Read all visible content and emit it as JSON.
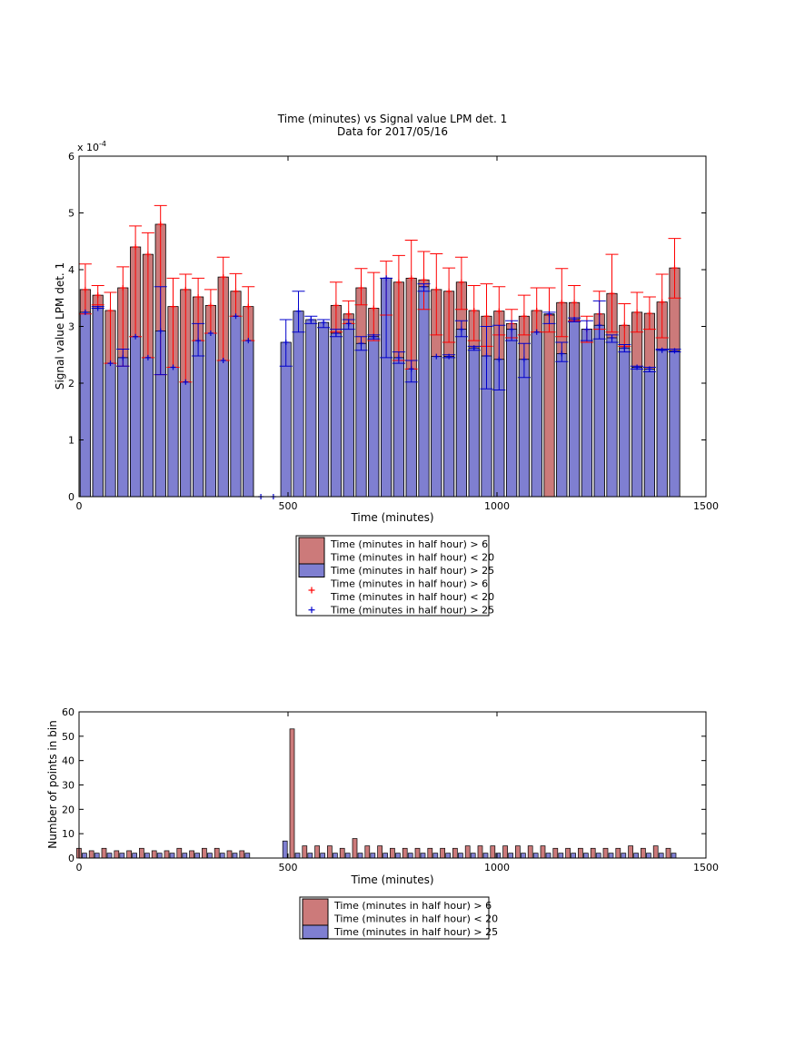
{
  "chart_data": [
    {
      "type": "bar",
      "title": "Time (minutes) vs Signal value LPM det. 1",
      "subtitle": "Data for 2017/05/16",
      "xlabel": "Time (minutes)",
      "ylabel": "Signal value LPM det. 1",
      "exponent_label": "x 10",
      "exponent_power": "-4",
      "xlim": [
        0,
        1500
      ],
      "ylim": [
        0,
        6
      ],
      "y_scale_factor": 0.0001,
      "xticks": [
        0,
        500,
        1000,
        1500
      ],
      "yticks": [
        0,
        1,
        2,
        3,
        4,
        5,
        6
      ],
      "grid": false,
      "legend_position": "below",
      "legend": [
        {
          "kind": "bar",
          "color": "#cc7a7a",
          "lines": [
            "Time (minutes in half hour) > 6",
            "Time (minutes in half hour) < 20"
          ]
        },
        {
          "kind": "bar",
          "color": "#7f7fd1",
          "lines": [
            "Time (minutes in half hour) > 25"
          ]
        },
        {
          "kind": "marker",
          "color": "#ff0000",
          "lines": [
            "Time (minutes in half hour) > 6",
            "Time (minutes in half hour) < 20"
          ]
        },
        {
          "kind": "marker",
          "color": "#0000cc",
          "lines": [
            "Time (minutes in half hour) > 25"
          ]
        }
      ],
      "colors": {
        "series_a": "#cc7a7a",
        "series_b": "#7f7fd1",
        "err_a": "#ff0000",
        "err_b": "#0000cc"
      },
      "x": [
        15,
        45,
        75,
        105,
        135,
        165,
        195,
        225,
        255,
        285,
        315,
        345,
        375,
        405,
        435,
        465,
        495,
        525,
        555,
        585,
        615,
        645,
        675,
        705,
        735,
        765,
        795,
        825,
        855,
        885,
        915,
        945,
        975,
        1005,
        1035,
        1065,
        1095,
        1125,
        1155,
        1185,
        1215,
        1245,
        1275,
        1305,
        1335,
        1365,
        1395,
        1425
      ],
      "series": [
        {
          "name": "Time (minutes in half hour) > 6 Time (minutes in half hour) < 20",
          "values": [
            3.65,
            3.55,
            3.28,
            3.68,
            4.4,
            4.27,
            4.8,
            3.35,
            3.65,
            3.52,
            3.37,
            3.87,
            3.62,
            3.35,
            null,
            null,
            null,
            null,
            null,
            null,
            3.37,
            3.22,
            3.68,
            3.32,
            3.85,
            3.78,
            3.85,
            3.82,
            3.65,
            3.62,
            3.78,
            3.28,
            3.18,
            3.27,
            3.05,
            3.18,
            3.28,
            3.2,
            3.42,
            3.42,
            2.95,
            3.22,
            3.58,
            3.02,
            3.25,
            3.23,
            3.43,
            4.03
          ],
          "err_low": [
            3.22,
            3.38,
            2.35,
            2.3,
            2.82,
            2.45,
            2.15,
            2.28,
            2.02,
            2.75,
            2.88,
            2.4,
            3.18,
            2.75,
            null,
            null,
            null,
            null,
            null,
            null,
            2.9,
            3.05,
            3.38,
            2.75,
            3.2,
            2.4,
            2.25,
            3.3,
            2.85,
            2.72,
            3.3,
            2.75,
            2.65,
            2.85,
            2.8,
            2.85,
            2.9,
            2.9,
            2.82,
            3.1,
            2.72,
            2.95,
            2.9,
            2.65,
            2.9,
            2.95,
            2.8,
            3.5
          ],
          "err_high": [
            4.1,
            3.72,
            3.6,
            4.05,
            4.77,
            4.65,
            5.13,
            3.85,
            3.92,
            3.85,
            3.65,
            4.22,
            3.93,
            3.7,
            null,
            null,
            null,
            null,
            null,
            null,
            3.78,
            3.45,
            4.02,
            3.95,
            4.15,
            4.25,
            4.52,
            4.32,
            4.28,
            4.03,
            4.22,
            3.72,
            3.75,
            3.7,
            3.3,
            3.55,
            3.68,
            3.68,
            4.02,
            3.72,
            3.18,
            3.62,
            4.27,
            3.4,
            3.6,
            3.52,
            3.92,
            4.55
          ]
        },
        {
          "name": "Time (minutes in half hour) > 25",
          "values": [
            3.25,
            3.32,
            2.35,
            2.45,
            2.82,
            2.45,
            2.92,
            2.28,
            2.02,
            2.75,
            2.88,
            2.4,
            3.18,
            2.75,
            0,
            0,
            2.72,
            3.27,
            3.12,
            3.07,
            2.88,
            3.05,
            2.7,
            2.82,
            3.85,
            2.45,
            2.25,
            3.7,
            2.47,
            2.47,
            2.95,
            2.62,
            2.48,
            2.42,
            2.95,
            2.42,
            2.9,
            3.22,
            2.52,
            3.12,
            2.95,
            3.02,
            2.8,
            2.62,
            2.28,
            2.25,
            2.58,
            2.57
          ],
          "err_low": [
            3.25,
            3.32,
            2.35,
            2.3,
            2.82,
            2.45,
            2.15,
            2.28,
            2.02,
            2.48,
            2.88,
            2.4,
            3.18,
            2.75,
            0,
            0,
            2.3,
            2.9,
            3.05,
            2.98,
            2.82,
            2.95,
            2.58,
            2.78,
            2.45,
            2.35,
            2.02,
            3.62,
            2.47,
            2.45,
            2.82,
            2.58,
            1.9,
            1.88,
            2.75,
            2.1,
            2.9,
            3.05,
            2.38,
            3.08,
            2.75,
            2.78,
            2.72,
            2.55,
            2.25,
            2.2,
            2.58,
            2.55
          ],
          "err_high": [
            3.25,
            3.35,
            2.35,
            2.6,
            2.82,
            2.45,
            3.7,
            2.28,
            2.02,
            3.05,
            2.88,
            2.4,
            3.18,
            2.75,
            0,
            0,
            3.12,
            3.62,
            3.18,
            3.12,
            2.95,
            3.12,
            2.82,
            2.85,
            3.85,
            2.55,
            2.4,
            3.75,
            2.47,
            2.5,
            3.1,
            2.65,
            3.0,
            3.02,
            3.1,
            2.7,
            2.9,
            3.25,
            2.72,
            3.15,
            3.1,
            3.45,
            2.85,
            2.68,
            2.3,
            2.28,
            2.6,
            2.6
          ]
        }
      ]
    },
    {
      "type": "bar",
      "xlabel": "Time (minutes)",
      "ylabel": "Number of points in bin",
      "xlim": [
        0,
        1500
      ],
      "ylim": [
        0,
        60
      ],
      "xticks": [
        0,
        500,
        1000,
        1500
      ],
      "yticks": [
        0,
        10,
        20,
        30,
        40,
        50,
        60
      ],
      "grid": false,
      "legend_position": "below",
      "legend": [
        {
          "kind": "bar",
          "color": "#cc7a7a",
          "lines": [
            "Time (minutes in half hour) > 6",
            "Time (minutes in half hour) < 20"
          ]
        },
        {
          "kind": "bar",
          "color": "#7f7fd1",
          "lines": [
            "Time (minutes in half hour) > 25"
          ]
        }
      ],
      "colors": {
        "series_a": "#cc7a7a",
        "series_b": "#7f7fd1"
      },
      "x": [
        15,
        45,
        75,
        105,
        135,
        165,
        195,
        225,
        255,
        285,
        315,
        345,
        375,
        405,
        435,
        465,
        495,
        525,
        555,
        585,
        615,
        645,
        675,
        705,
        735,
        765,
        795,
        825,
        855,
        885,
        915,
        945,
        975,
        1005,
        1035,
        1065,
        1095,
        1125,
        1155,
        1185,
        1215,
        1245,
        1275,
        1305,
        1335,
        1365,
        1395,
        1425
      ],
      "series": [
        {
          "name": "Time (minutes in half hour) > 6 Time (minutes in half hour) < 20",
          "values": [
            4,
            3,
            4,
            3,
            3,
            4,
            3,
            3,
            4,
            3,
            4,
            4,
            3,
            3,
            0,
            0,
            0,
            53,
            5,
            5,
            5,
            4,
            8,
            5,
            5,
            4,
            4,
            4,
            4,
            4,
            4,
            5,
            5,
            5,
            5,
            5,
            5,
            5,
            4,
            4,
            4,
            4,
            4,
            4,
            5,
            4,
            5,
            4
          ]
        },
        {
          "name": "Time (minutes in half hour) > 25",
          "values": [
            2,
            2,
            2,
            2,
            2,
            2,
            2,
            2,
            2,
            2,
            2,
            2,
            2,
            2,
            0,
            0,
            7,
            2,
            2,
            2,
            2,
            2,
            2,
            2,
            2,
            2,
            2,
            2,
            2,
            2,
            2,
            2,
            2,
            2,
            2,
            2,
            2,
            2,
            2,
            2,
            2,
            2,
            2,
            2,
            2,
            2,
            2,
            2
          ]
        }
      ]
    }
  ]
}
